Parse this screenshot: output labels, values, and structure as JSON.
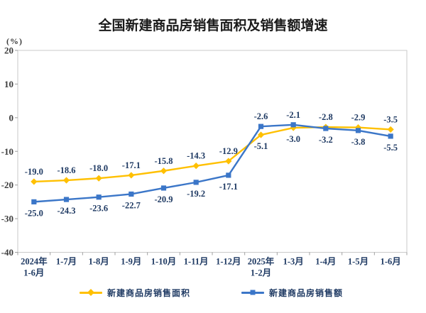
{
  "title": "全国新建商品房销售面积及销售额增速",
  "unit_label": "(%)",
  "chart_data": {
    "type": "line",
    "categories": [
      [
        "2024年",
        "1-6月"
      ],
      [
        "1-7月"
      ],
      [
        "1-8月"
      ],
      [
        "1-9月"
      ],
      [
        "1-10月"
      ],
      [
        "1-11月"
      ],
      [
        "1-12月"
      ],
      [
        "2025年",
        "1-2月"
      ],
      [
        "1-3月"
      ],
      [
        "1-4月"
      ],
      [
        "1-5月"
      ],
      [
        "1-6月"
      ]
    ],
    "y_ticks": [
      20,
      10,
      0,
      -10,
      -20,
      -30,
      -40
    ],
    "ylim": [
      -40,
      20
    ],
    "grid": false,
    "legend_position": "bottom",
    "series": [
      {
        "name": "新建商品房销售面积",
        "color": "#FFC000",
        "marker": "diamond",
        "values": [
          -19.0,
          -18.6,
          -18.0,
          -17.1,
          -15.8,
          -14.3,
          -12.9,
          -5.1,
          -3.0,
          -2.8,
          -2.9,
          -3.5
        ],
        "labels": [
          "-19.0",
          "-18.6",
          "-18.0",
          "-17.1",
          "-15.8",
          "-14.3",
          "-12.9",
          "-5.1",
          "-3.0",
          "-2.8",
          "-2.9",
          "-3.5"
        ],
        "label_positions": [
          "above",
          "above",
          "above",
          "above",
          "above",
          "above",
          "above",
          "below",
          "below",
          "above",
          "above",
          "above"
        ]
      },
      {
        "name": "新建商品房销售额",
        "color": "#3B76C8",
        "marker": "square",
        "values": [
          -25.0,
          -24.3,
          -23.6,
          -22.7,
          -20.9,
          -19.2,
          -17.1,
          -2.6,
          -2.1,
          -3.2,
          -3.8,
          -5.5
        ],
        "labels": [
          "-25.0",
          "-24.3",
          "-23.6",
          "-22.7",
          "-20.9",
          "-19.2",
          "-17.1",
          "-2.6",
          "-2.1",
          "-3.2",
          "-3.8",
          "-5.5"
        ],
        "label_positions": [
          "below",
          "below",
          "below",
          "below",
          "below",
          "below",
          "below",
          "above",
          "above",
          "below",
          "below",
          "below"
        ]
      }
    ],
    "colors": {
      "axis_border": "#c9c9c9",
      "tick_mark": "#9e9e9e",
      "y_tick_label": "#3d3d3d",
      "x_tick_label": "#1f3a63",
      "data_label": "#1f3a63"
    }
  }
}
